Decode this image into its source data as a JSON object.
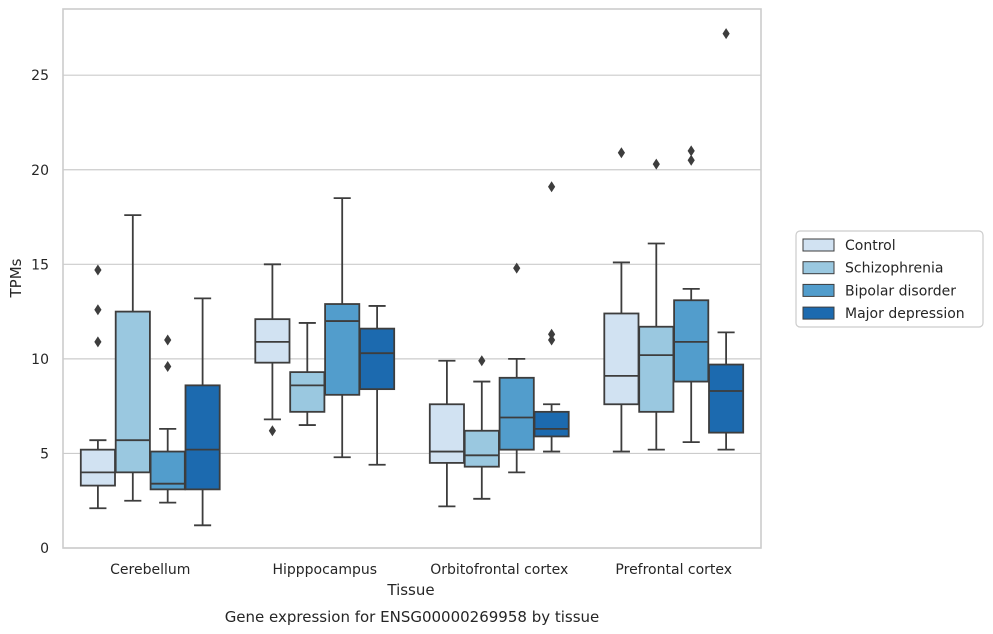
{
  "chart_data": {
    "type": "box",
    "xlabel": "Tissue",
    "ylabel": "TPMs",
    "caption": "Gene expression for ENSG00000269958 by tissue",
    "categories": [
      "Cerebellum",
      "Hipppocampus",
      "Orbitofrontal cortex",
      "Prefrontal cortex"
    ],
    "ylim": [
      0,
      28.5
    ],
    "yticks": [
      0,
      5,
      10,
      15,
      20,
      25
    ],
    "grid": "horizontal",
    "legend_position": "right",
    "series": [
      {
        "name": "Control",
        "color": "#d1e2f2",
        "boxes": [
          {
            "whislo": 2.1,
            "q1": 3.3,
            "med": 4.0,
            "q3": 5.2,
            "whishi": 5.7,
            "fliers": [
              10.9,
              12.6,
              14.7
            ]
          },
          {
            "whislo": 6.8,
            "q1": 9.8,
            "med": 10.9,
            "q3": 12.1,
            "whishi": 15.0,
            "fliers": [
              6.2
            ]
          },
          {
            "whislo": 2.2,
            "q1": 4.5,
            "med": 5.1,
            "q3": 7.6,
            "whishi": 9.9,
            "fliers": []
          },
          {
            "whislo": 5.1,
            "q1": 7.6,
            "med": 9.1,
            "q3": 12.4,
            "whishi": 15.1,
            "fliers": [
              20.9
            ]
          }
        ]
      },
      {
        "name": "Schizophrenia",
        "color": "#9ac8e0",
        "boxes": [
          {
            "whislo": 2.5,
            "q1": 4.0,
            "med": 5.7,
            "q3": 12.5,
            "whishi": 17.6,
            "fliers": []
          },
          {
            "whislo": 6.5,
            "q1": 7.2,
            "med": 8.6,
            "q3": 9.3,
            "whishi": 11.9,
            "fliers": []
          },
          {
            "whislo": 2.6,
            "q1": 4.3,
            "med": 4.9,
            "q3": 6.2,
            "whishi": 8.8,
            "fliers": [
              9.9
            ]
          },
          {
            "whislo": 5.2,
            "q1": 7.2,
            "med": 10.2,
            "q3": 11.7,
            "whishi": 16.1,
            "fliers": [
              20.3
            ]
          }
        ]
      },
      {
        "name": "Bipolar disorder",
        "color": "#529dcc",
        "boxes": [
          {
            "whislo": 2.4,
            "q1": 3.1,
            "med": 3.4,
            "q3": 5.1,
            "whishi": 6.3,
            "fliers": [
              9.6,
              11.0
            ]
          },
          {
            "whislo": 4.8,
            "q1": 8.1,
            "med": 12.0,
            "q3": 12.9,
            "whishi": 18.5,
            "fliers": []
          },
          {
            "whislo": 4.0,
            "q1": 5.2,
            "med": 6.9,
            "q3": 9.0,
            "whishi": 10.0,
            "fliers": [
              14.8
            ]
          },
          {
            "whislo": 5.6,
            "q1": 8.8,
            "med": 10.9,
            "q3": 13.1,
            "whishi": 13.7,
            "fliers": [
              20.5,
              21.0
            ]
          }
        ]
      },
      {
        "name": "Major depression",
        "color": "#1c6aaf",
        "boxes": [
          {
            "whislo": 1.2,
            "q1": 3.1,
            "med": 5.2,
            "q3": 8.6,
            "whishi": 13.2,
            "fliers": []
          },
          {
            "whislo": 4.4,
            "q1": 8.4,
            "med": 10.3,
            "q3": 11.6,
            "whishi": 12.8,
            "fliers": []
          },
          {
            "whislo": 5.1,
            "q1": 5.9,
            "med": 6.3,
            "q3": 7.2,
            "whishi": 7.6,
            "fliers": [
              11.0,
              11.3,
              19.1
            ]
          },
          {
            "whislo": 5.2,
            "q1": 6.1,
            "med": 8.3,
            "q3": 9.7,
            "whishi": 11.4,
            "fliers": [
              27.2
            ]
          }
        ]
      }
    ]
  }
}
